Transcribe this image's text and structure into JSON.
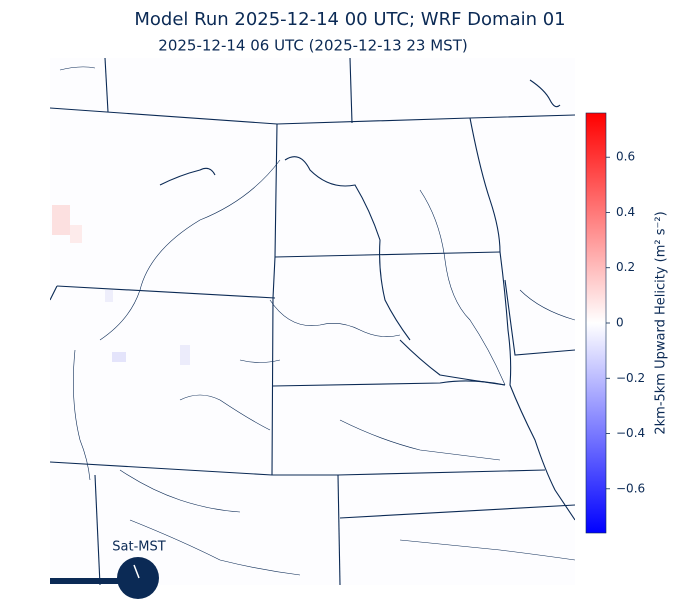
{
  "header": {
    "title": "Model Run 2025-12-14 00 UTC; WRF Domain 01",
    "subtitle": "2025-12-14 06 UTC  (2025-12-13 23 MST)"
  },
  "colorbar": {
    "label": "2km-5km Upward Helicity (m² s⁻²)",
    "lim": [
      -0.76,
      0.76
    ],
    "colors": [
      "#0000ff",
      "#ffffff",
      "#ff0000"
    ],
    "ticks": [
      {
        "value": -0.6,
        "label": "−0.6"
      },
      {
        "value": -0.4,
        "label": "−0.4"
      },
      {
        "value": -0.2,
        "label": "−0.2"
      },
      0.0,
      0.2,
      0.4,
      0.6
    ]
  },
  "time_indicator": {
    "label": "Sat-MST"
  }
}
